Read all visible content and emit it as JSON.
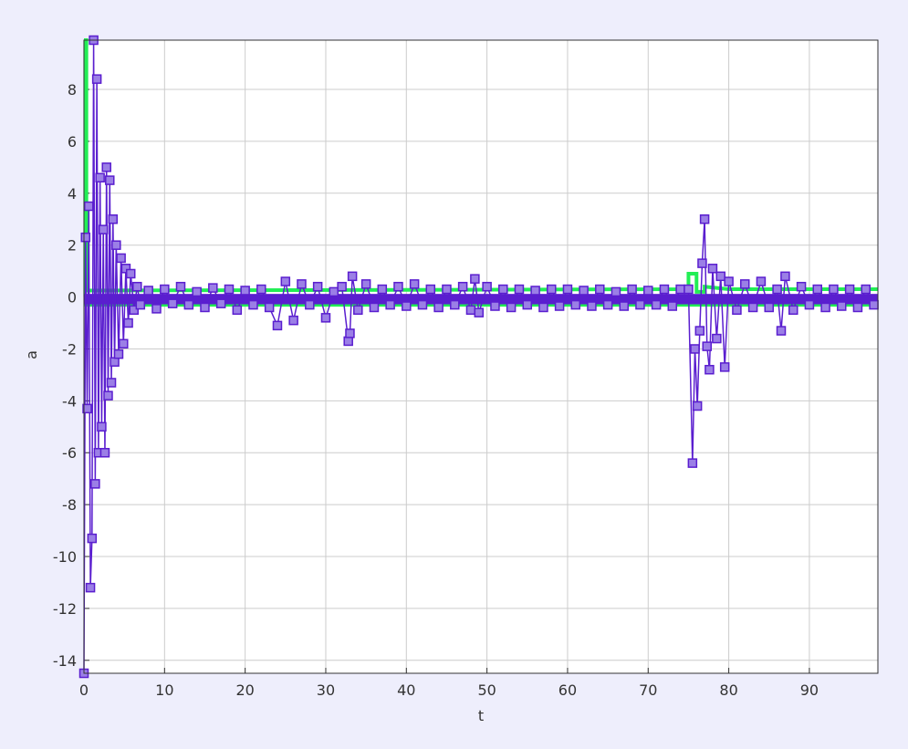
{
  "chart_data": {
    "type": "line",
    "title": "",
    "xlabel": "t",
    "ylabel": "a",
    "xlim": [
      0,
      98.5
    ],
    "ylim": [
      -14.5,
      9.9
    ],
    "grid": true,
    "xticks": [
      0,
      10,
      20,
      30,
      40,
      50,
      60,
      70,
      80,
      90
    ],
    "yticks": [
      8,
      6,
      4,
      2,
      0,
      -2,
      -4,
      -6,
      -8,
      -10,
      -12,
      -14
    ],
    "colors": {
      "background": "#eeeefc",
      "plot_area": "#ffffff",
      "grid": "#cccccc",
      "signal": "#5a1ecf",
      "marker_fill": "#9b7fe6",
      "envelope": "#22ee55"
    },
    "series": [
      {
        "marker": "square",
        "x": [
          0.0,
          0.2,
          0.4,
          0.6,
          0.8,
          1.0,
          1.2,
          1.4,
          1.6,
          1.8,
          2.0,
          2.2,
          2.4,
          2.6,
          2.8,
          3.0,
          3.2,
          3.4,
          3.6,
          3.8,
          4.0,
          4.3,
          4.6,
          4.9,
          5.2,
          5.5,
          5.8,
          6.2,
          6.6,
          7.0,
          8.0,
          9.0,
          10.0,
          11.0,
          12.0,
          13.0,
          14.0,
          15.0,
          16.0,
          17.0,
          18.0,
          19.0,
          20.0,
          21.0,
          22.0,
          23.0,
          24.0,
          25.0,
          26.0,
          27.0,
          28.0,
          29.0,
          30.0,
          31.0,
          32.0,
          32.8,
          33.0,
          33.3,
          34.0,
          35.0,
          36.0,
          37.0,
          38.0,
          39.0,
          40.0,
          41.0,
          42.0,
          43.0,
          44.0,
          45.0,
          46.0,
          47.0,
          48.0,
          48.5,
          49.0,
          50.0,
          51.0,
          52.0,
          53.0,
          54.0,
          55.0,
          56.0,
          57.0,
          58.0,
          59.0,
          60.0,
          61.0,
          62.0,
          63.0,
          64.0,
          65.0,
          66.0,
          67.0,
          68.0,
          69.0,
          70.0,
          71.0,
          72.0,
          73.0,
          74.0,
          75.0,
          75.5,
          75.8,
          76.1,
          76.4,
          76.7,
          77.0,
          77.3,
          77.6,
          78.0,
          78.5,
          79.0,
          79.5,
          80.0,
          81.0,
          82.0,
          83.0,
          84.0,
          85.0,
          86.0,
          86.5,
          87.0,
          88.0,
          89.0,
          90.0,
          91.0,
          92.0,
          93.0,
          94.0,
          95.0,
          96.0,
          97.0,
          98.0
        ],
        "y": [
          -14.5,
          2.3,
          -4.3,
          3.5,
          -11.2,
          -9.3,
          9.9,
          -7.2,
          8.4,
          -6.0,
          4.6,
          -5.0,
          2.6,
          -6.0,
          5.0,
          -3.8,
          4.5,
          -3.3,
          3.0,
          -2.5,
          2.0,
          -2.2,
          1.5,
          -1.8,
          1.1,
          -1.0,
          0.9,
          -0.5,
          0.4,
          -0.3,
          0.25,
          -0.45,
          0.3,
          -0.25,
          0.4,
          -0.3,
          0.2,
          -0.4,
          0.35,
          -0.25,
          0.3,
          -0.5,
          0.25,
          -0.3,
          0.3,
          -0.4,
          -1.1,
          0.6,
          -0.9,
          0.5,
          -0.3,
          0.4,
          -0.8,
          0.2,
          0.4,
          -1.7,
          -1.4,
          0.8,
          -0.5,
          0.5,
          -0.4,
          0.3,
          -0.3,
          0.4,
          -0.35,
          0.5,
          -0.3,
          0.3,
          -0.4,
          0.3,
          -0.3,
          0.4,
          -0.5,
          0.7,
          -0.6,
          0.4,
          -0.35,
          0.3,
          -0.4,
          0.3,
          -0.3,
          0.25,
          -0.4,
          0.3,
          -0.35,
          0.3,
          -0.3,
          0.25,
          -0.35,
          0.3,
          -0.3,
          0.2,
          -0.35,
          0.3,
          -0.3,
          0.25,
          -0.3,
          0.3,
          -0.35,
          0.3,
          0.3,
          -6.4,
          -2.0,
          -4.2,
          -1.3,
          1.3,
          3.0,
          -1.9,
          -2.8,
          1.1,
          -1.6,
          0.8,
          -2.7,
          0.6,
          -0.5,
          0.5,
          -0.4,
          0.6,
          -0.4,
          0.3,
          -1.3,
          0.8,
          -0.5,
          0.4,
          -0.3,
          0.3,
          -0.4,
          0.3,
          -0.35,
          0.3,
          -0.4,
          0.3,
          -0.3
        ]
      }
    ],
    "envelope": {
      "x": [
        0,
        0.3,
        0.3,
        75.0,
        75.0,
        76.0,
        76.0,
        77.0,
        77.0,
        80.0,
        98.5
      ],
      "upper": [
        9.9,
        9.9,
        0.25,
        0.3,
        0.9,
        0.9,
        0.2,
        0.2,
        0.4,
        0.3,
        0.3
      ],
      "lower": [
        -0.25,
        -0.25,
        -0.3,
        -0.3,
        -0.3,
        -0.3,
        -0.3,
        -0.3,
        -0.3,
        -0.3,
        -0.3
      ]
    }
  }
}
